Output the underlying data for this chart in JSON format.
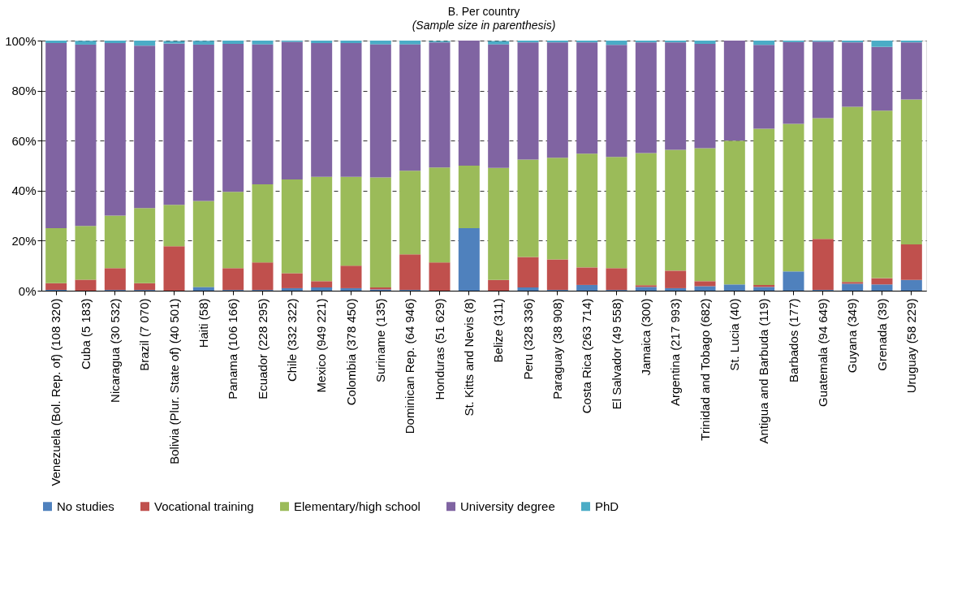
{
  "chart_data": {
    "type": "bar",
    "stacked": true,
    "title": "B. Per country",
    "subtitle": "(Sample size in parenthesis)",
    "categories": [
      "Venezuela (Bol. Rep. of) (108 320)",
      "Cuba (5 183)",
      "Nicaragua (30 532)",
      "Brazil (7 070)",
      "Bolivia (Plur. State of) (40 501)",
      "Haiti (58)",
      "Panama (106 166)",
      "Ecuador (228 295)",
      "Chile (332 322)",
      "Mexico (949 221)",
      "Colombia (378 450)",
      "Suriname (135)",
      "Dominican Rep. (64 946)",
      "Honduras (51 629)",
      "St. Kitts and Nevis (8)",
      "Belize (311)",
      "Peru (328 336)",
      "Paraguay (38 908)",
      "Costa Rica (263 714)",
      "El Salvador (49 558)",
      "Jamaica (300)",
      "Argentina (217 993)",
      "Trinidad and Tobago (682)",
      "St. Lucia (40)",
      "Antigua and Barbuda (119)",
      "Barbados (177)",
      "Guatemala (94 649)",
      "Guyana (349)",
      "Grenada (39)",
      "Uruguay (58 229)"
    ],
    "series": [
      {
        "name": "No studies",
        "color": "#4f81bd",
        "values": [
          0.3,
          null,
          0.3,
          0.3,
          null,
          1.5,
          0.3,
          0.3,
          1,
          1.3,
          1,
          0.5,
          0.3,
          null,
          25,
          null,
          1.3,
          0.3,
          2.3,
          0.3,
          1.5,
          1,
          1.8,
          2.5,
          1.5,
          7.7,
          0.3,
          2.8,
          2.5,
          4.3
        ]
      },
      {
        "name": "Vocational training",
        "color": "#c0504d",
        "values": [
          2.7,
          4.4,
          8.7,
          2.7,
          17.8,
          null,
          8.7,
          11,
          6,
          2.5,
          9,
          0.8,
          14.2,
          11.3,
          0,
          4.3,
          12.2,
          12.2,
          7,
          8.7,
          0.7,
          7,
          2,
          0,
          0.8,
          0,
          20.4,
          0.7,
          2.5,
          14.2
        ]
      },
      {
        "name": "Elementary/high school",
        "color": "#9bbb59",
        "values": [
          22,
          21.5,
          21,
          30,
          16.5,
          34.4,
          30.5,
          31.2,
          37.5,
          41.7,
          35.5,
          44,
          33.5,
          38,
          25,
          44.8,
          38.9,
          40.7,
          45.5,
          44.5,
          52.8,
          48.3,
          53.2,
          57.5,
          62.5,
          59,
          48.3,
          70,
          67,
          58
        ]
      },
      {
        "name": "University degree",
        "color": "#8064a2",
        "values": [
          74,
          72.5,
          69,
          65,
          64.5,
          62.5,
          59.2,
          56,
          55,
          53.5,
          53.5,
          53.2,
          50.5,
          50,
          50,
          49.4,
          46.9,
          46.1,
          44.5,
          44.8,
          44.3,
          43,
          41.7,
          40,
          33.5,
          32.7,
          30.6,
          25.8,
          25.5,
          22.8
        ]
      },
      {
        "name": "PhD",
        "color": "#4bacc6",
        "values": [
          1,
          1.5,
          1,
          2,
          1,
          1.5,
          1.3,
          1.5,
          0.5,
          1,
          1,
          1.5,
          1.5,
          0.5,
          0,
          1.3,
          0.7,
          0.7,
          0.7,
          1.7,
          0.7,
          0.7,
          1.3,
          0,
          1.7,
          0.6,
          0.4,
          0.7,
          2.5,
          0.7
        ]
      }
    ],
    "ylim": [
      0,
      100
    ],
    "yticks": [
      {
        "value": 0,
        "label": "0%"
      },
      {
        "value": 20,
        "label": "20%"
      },
      {
        "value": 40,
        "label": "40%"
      },
      {
        "value": 60,
        "label": "60%"
      },
      {
        "value": 80,
        "label": "80%"
      },
      {
        "value": 100,
        "label": "100%"
      }
    ],
    "grid": "y",
    "legend": "bottom"
  }
}
